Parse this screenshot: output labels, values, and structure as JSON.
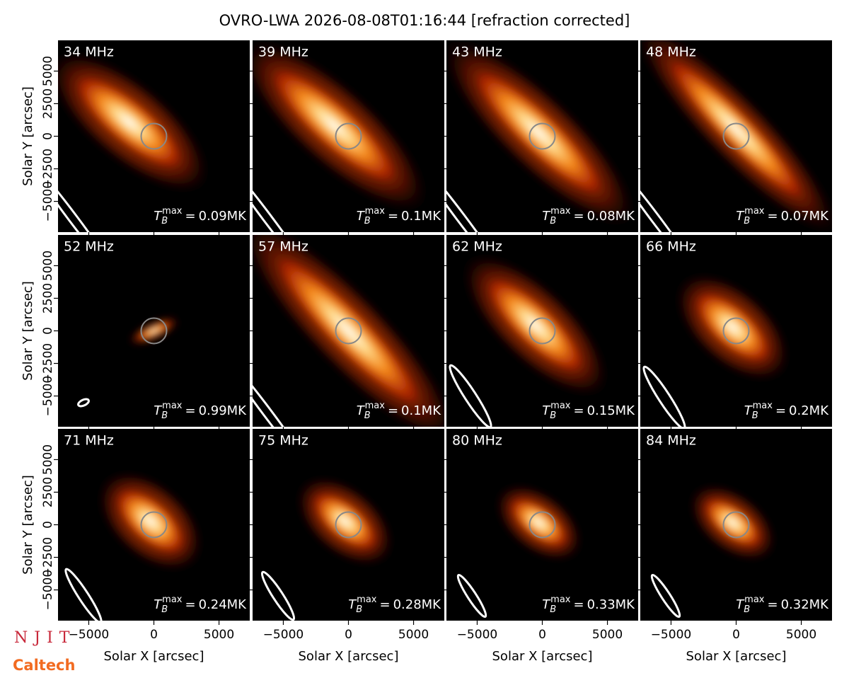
{
  "chart_data": {
    "type": "image-grid",
    "title": "OVRO-LWA 2026-08-08T01:16:44 [refraction corrected]",
    "x_label": "Solar X [arcsec]",
    "y_label": "Solar Y [arcsec]",
    "xlim": [
      -7360,
      7360
    ],
    "ylim": [
      -7360,
      7360
    ],
    "xticks": [
      {
        "value": -5000,
        "label": "−5000"
      },
      0,
      5000
    ],
    "yticks": [
      {
        "value": -5000,
        "label": "−5000"
      },
      {
        "value": -2500,
        "label": "−2500"
      },
      0,
      2500,
      5000
    ],
    "tb_label": {
      "symbol": "T",
      "subscript": "B",
      "superscript": "max",
      "equals": "="
    },
    "panels": [
      {
        "frequency": "34 MHz",
        "tb_max": "0.09MK"
      },
      {
        "frequency": "39 MHz",
        "tb_max": "0.1MK"
      },
      {
        "frequency": "43 MHz",
        "tb_max": "0.08MK"
      },
      {
        "frequency": "48 MHz",
        "tb_max": "0.07MK"
      },
      {
        "frequency": "52 MHz",
        "tb_max": "0.99MK"
      },
      {
        "frequency": "57 MHz",
        "tb_max": "0.1MK"
      },
      {
        "frequency": "62 MHz",
        "tb_max": "0.15MK"
      },
      {
        "frequency": "66 MHz",
        "tb_max": "0.2MK"
      },
      {
        "frequency": "71 MHz",
        "tb_max": "0.24MK"
      },
      {
        "frequency": "75 MHz",
        "tb_max": "0.28MK"
      },
      {
        "frequency": "80 MHz",
        "tb_max": "0.33MK"
      },
      {
        "frequency": "84 MHz",
        "tb_max": "0.32MK"
      }
    ],
    "logos": [
      "NJIT",
      "Caltech"
    ]
  }
}
